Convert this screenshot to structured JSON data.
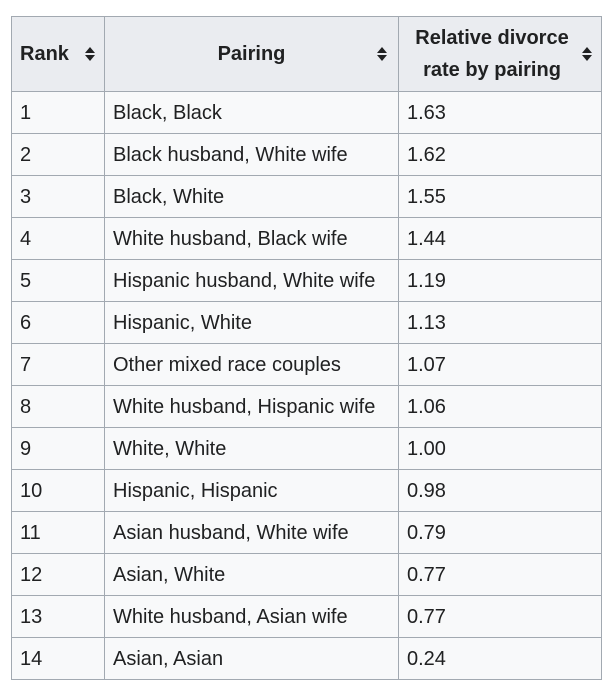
{
  "table": {
    "headers": {
      "rank": "Rank",
      "pairing": "Pairing",
      "rate": "Relative divorce rate by pairing"
    },
    "rows": [
      {
        "rank": "1",
        "pairing": "Black, Black",
        "rate": "1.63"
      },
      {
        "rank": "2",
        "pairing": "Black husband, White wife",
        "rate": "1.62"
      },
      {
        "rank": "3",
        "pairing": "Black, White",
        "rate": "1.55"
      },
      {
        "rank": "4",
        "pairing": "White husband, Black wife",
        "rate": "1.44"
      },
      {
        "rank": "5",
        "pairing": "Hispanic husband, White wife",
        "rate": "1.19"
      },
      {
        "rank": "6",
        "pairing": "Hispanic, White",
        "rate": "1.13"
      },
      {
        "rank": "7",
        "pairing": "Other mixed race couples",
        "rate": "1.07"
      },
      {
        "rank": "8",
        "pairing": "White husband, Hispanic wife",
        "rate": "1.06"
      },
      {
        "rank": "9",
        "pairing": "White, White",
        "rate": "1.00"
      },
      {
        "rank": "10",
        "pairing": "Hispanic, Hispanic",
        "rate": "0.98"
      },
      {
        "rank": "11",
        "pairing": "Asian husband, White wife",
        "rate": "0.79"
      },
      {
        "rank": "12",
        "pairing": "Asian, White",
        "rate": "0.77"
      },
      {
        "rank": "13",
        "pairing": "White husband, Asian wife",
        "rate": "0.77"
      },
      {
        "rank": "14",
        "pairing": "Asian, Asian",
        "rate": "0.24"
      }
    ]
  },
  "icons": {
    "sort": "sort-up-down-icon"
  },
  "colors": {
    "header_bg": "#eaecf0",
    "cell_bg": "#f8f9fa",
    "border": "#a2a9b1",
    "text": "#202122"
  }
}
